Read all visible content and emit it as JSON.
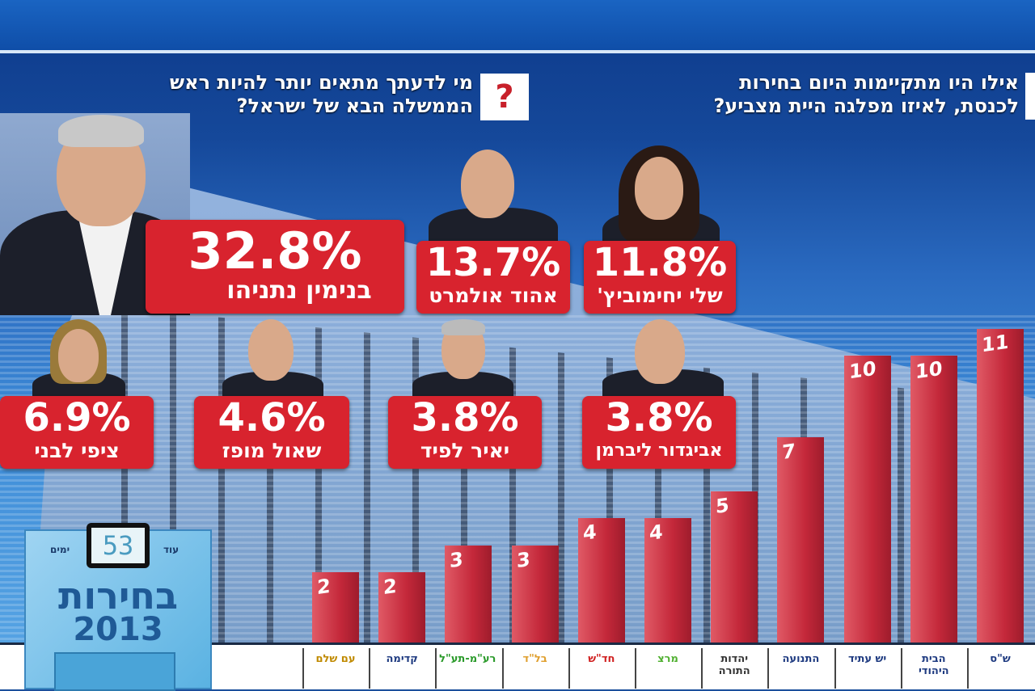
{
  "header": {
    "question_parties": "אילו היו מתקיימות היום בחירות לכנסת, לאיזו מפלגה היית מצביע?",
    "question_pm": "מי לדעתך מתאים יותר להיות ראש הממשלה הבא של ישראל?",
    "question_mark": "?"
  },
  "candidates": [
    {
      "name": "בנימין נתניהו",
      "pct": "32.8%"
    },
    {
      "name": "אהוד אולמרט",
      "pct": "13.7%"
    },
    {
      "name": "שלי יחימוביץ'",
      "pct": "11.8%"
    },
    {
      "name": "ציפי לבני",
      "pct": "6.9%"
    },
    {
      "name": "שאול מופז",
      "pct": "4.6%"
    },
    {
      "name": "יאיר לפיד",
      "pct": "3.8%"
    },
    {
      "name": "אביגדור ליברמן",
      "pct": "3.8%"
    }
  ],
  "badge": {
    "until": "עוד",
    "days": "53",
    "days_label": "ימים",
    "title": "בחירות",
    "year": "2013"
  },
  "colors": {
    "card": "#d8232e",
    "bar": "#c4283a",
    "bg": "#15489a"
  },
  "chart_data": {
    "type": "bar",
    "title": "אילו היו מתקיימות היום בחירות לכנסת, לאיזו מפלגה היית מצביע?",
    "categories": [
      "עם שלם",
      "קדימה",
      "רע\"מ-תע\"ל",
      "בל\"ד",
      "חד\"ש",
      "מרצ",
      "יהדות התורה",
      "התנועה",
      "יש עתיד",
      "הבית היהודי",
      "ש\"ס"
    ],
    "values": [
      2,
      2,
      3,
      3,
      4,
      4,
      5,
      7,
      10,
      10,
      11
    ],
    "ylim": [
      0,
      12
    ]
  }
}
